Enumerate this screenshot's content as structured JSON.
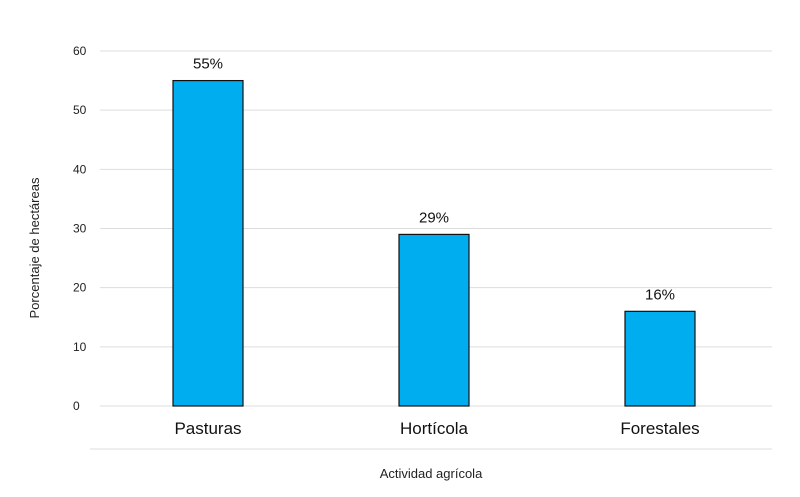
{
  "chart_data": {
    "type": "bar",
    "categories": [
      "Pasturas",
      "Hortícola",
      "Forestales"
    ],
    "values": [
      55,
      29,
      16
    ],
    "data_labels": [
      "55%",
      "29%",
      "16%"
    ],
    "xlabel": "Actividad agrícola",
    "ylabel": "Porcentaje de hectáreas",
    "ylim": [
      0,
      60
    ],
    "yticks": [
      0,
      10,
      20,
      30,
      40,
      50,
      60
    ],
    "grid": true,
    "legend": "none",
    "colors": {
      "bar_fill": "#00adef",
      "bar_stroke": "#111111",
      "grid": "#dddddd",
      "text": "#222222"
    }
  }
}
